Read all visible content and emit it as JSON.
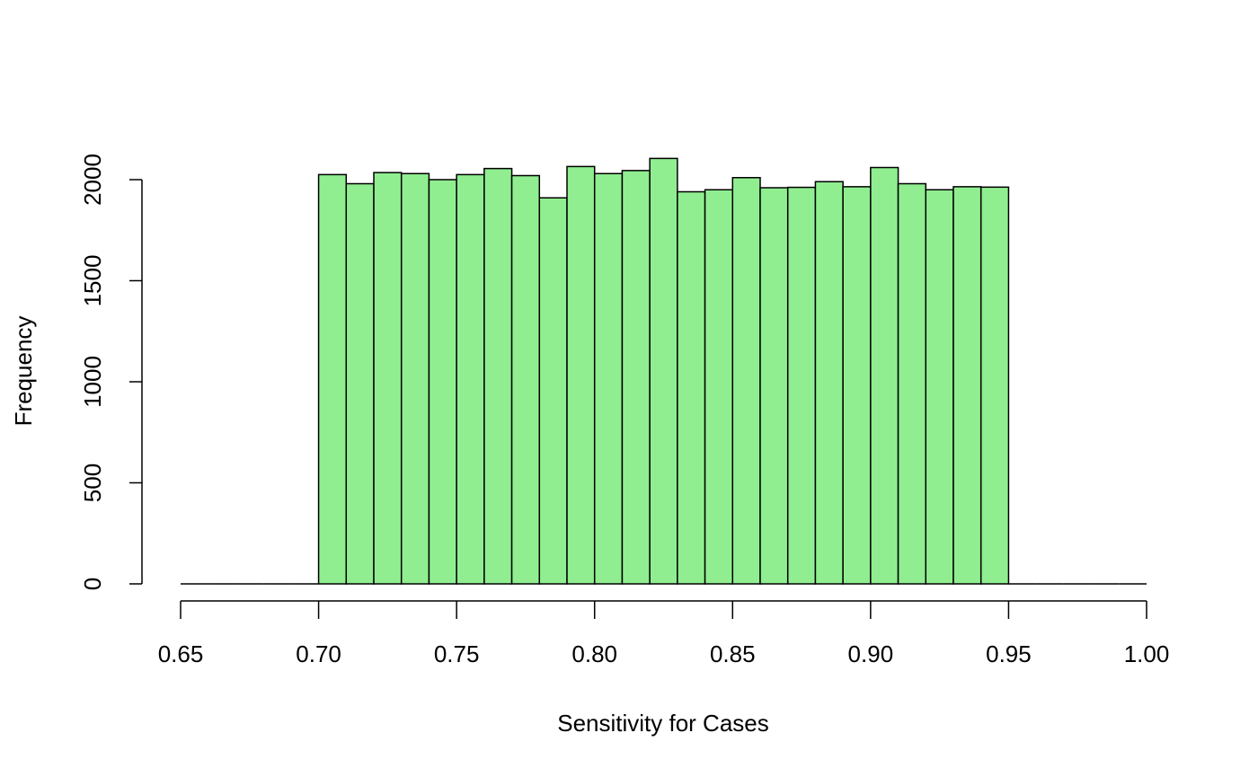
{
  "chart_data": {
    "type": "bar",
    "subtype": "histogram",
    "xlabel": "Sensitivity for Cases",
    "ylabel": "Frequency",
    "xlim": [
      0.65,
      1.0
    ],
    "ylim": [
      0,
      2000
    ],
    "x_ticks": [
      "0.65",
      "0.70",
      "0.75",
      "0.80",
      "0.85",
      "0.90",
      "0.95",
      "1.00"
    ],
    "y_ticks": [
      "0",
      "500",
      "1000",
      "1500",
      "2000"
    ],
    "bin_width": 0.01,
    "bins": [
      {
        "x0": 0.65,
        "x1": 0.66,
        "value": 0
      },
      {
        "x0": 0.66,
        "x1": 0.67,
        "value": 0
      },
      {
        "x0": 0.67,
        "x1": 0.68,
        "value": 0
      },
      {
        "x0": 0.68,
        "x1": 0.69,
        "value": 0
      },
      {
        "x0": 0.69,
        "x1": 0.7,
        "value": 0
      },
      {
        "x0": 0.7,
        "x1": 0.71,
        "value": 2025
      },
      {
        "x0": 0.71,
        "x1": 0.72,
        "value": 1980
      },
      {
        "x0": 0.72,
        "x1": 0.73,
        "value": 2035
      },
      {
        "x0": 0.73,
        "x1": 0.74,
        "value": 2030
      },
      {
        "x0": 0.74,
        "x1": 0.75,
        "value": 2000
      },
      {
        "x0": 0.75,
        "x1": 0.76,
        "value": 2025
      },
      {
        "x0": 0.76,
        "x1": 0.77,
        "value": 2055
      },
      {
        "x0": 0.77,
        "x1": 0.78,
        "value": 2020
      },
      {
        "x0": 0.78,
        "x1": 0.79,
        "value": 1910
      },
      {
        "x0": 0.79,
        "x1": 0.8,
        "value": 2065
      },
      {
        "x0": 0.8,
        "x1": 0.81,
        "value": 2030
      },
      {
        "x0": 0.81,
        "x1": 0.82,
        "value": 2045
      },
      {
        "x0": 0.82,
        "x1": 0.83,
        "value": 2105
      },
      {
        "x0": 0.83,
        "x1": 0.84,
        "value": 1940
      },
      {
        "x0": 0.84,
        "x1": 0.85,
        "value": 1950
      },
      {
        "x0": 0.85,
        "x1": 0.86,
        "value": 2010
      },
      {
        "x0": 0.86,
        "x1": 0.87,
        "value": 1960
      },
      {
        "x0": 0.87,
        "x1": 0.88,
        "value": 1962
      },
      {
        "x0": 0.88,
        "x1": 0.89,
        "value": 1990
      },
      {
        "x0": 0.89,
        "x1": 0.9,
        "value": 1965
      },
      {
        "x0": 0.9,
        "x1": 0.91,
        "value": 2060
      },
      {
        "x0": 0.91,
        "x1": 0.92,
        "value": 1980
      },
      {
        "x0": 0.92,
        "x1": 0.93,
        "value": 1950
      },
      {
        "x0": 0.93,
        "x1": 0.94,
        "value": 1965
      },
      {
        "x0": 0.94,
        "x1": 0.95,
        "value": 1963
      },
      {
        "x0": 0.95,
        "x1": 0.96,
        "value": 0
      },
      {
        "x0": 0.96,
        "x1": 0.97,
        "value": 0
      },
      {
        "x0": 0.97,
        "x1": 0.98,
        "value": 0
      },
      {
        "x0": 0.98,
        "x1": 0.99,
        "value": 0
      },
      {
        "x0": 0.99,
        "x1": 1.0,
        "value": 0
      }
    ],
    "colors": {
      "bar_fill": "#90EE90",
      "bar_stroke": "#000000",
      "axis": "#000000"
    },
    "grid": false,
    "legend": "none"
  }
}
